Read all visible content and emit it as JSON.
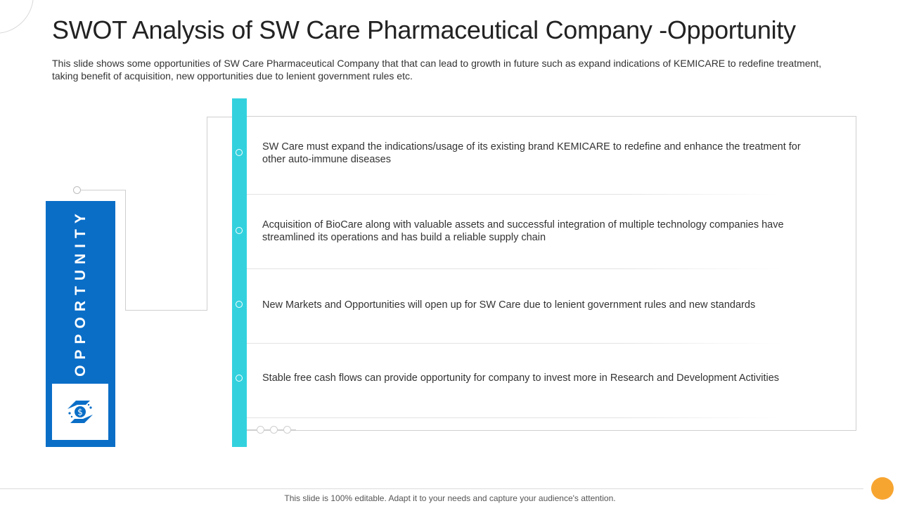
{
  "header": {
    "title": "SWOT Analysis of SW Care Pharmaceutical Company -Opportunity",
    "subtitle": "This slide shows some opportunities of SW Care Pharmaceutical Company that that can lead to growth in future such as expand indications of KEMICARE to redefine treatment, taking benefit of acquisition, new opportunities due to lenient government rules etc."
  },
  "side_panel": {
    "label": "OPPORTUNITY",
    "icon": "money-hands-icon",
    "color": "#0a6ec7"
  },
  "timeline": {
    "color": "#33d1de",
    "items": [
      {
        "text": "SW Care must expand the indications/usage of its existing brand KEMICARE to redefine and enhance the treatment for other auto-immune diseases"
      },
      {
        "text": "Acquisition of BioCare along with valuable assets and successful integration of multiple technology companies have streamlined its operations and has build a reliable supply chain"
      },
      {
        "text": "New Markets and Opportunities will open up for SW Care due to lenient government rules and new standards"
      },
      {
        "text": "Stable free cash flows can provide opportunity for company to invest more in Research and Development Activities"
      }
    ]
  },
  "footer": {
    "text": "This slide is 100% editable. Adapt it to your needs and capture your audience's attention.",
    "accent_color": "#f7a531"
  }
}
